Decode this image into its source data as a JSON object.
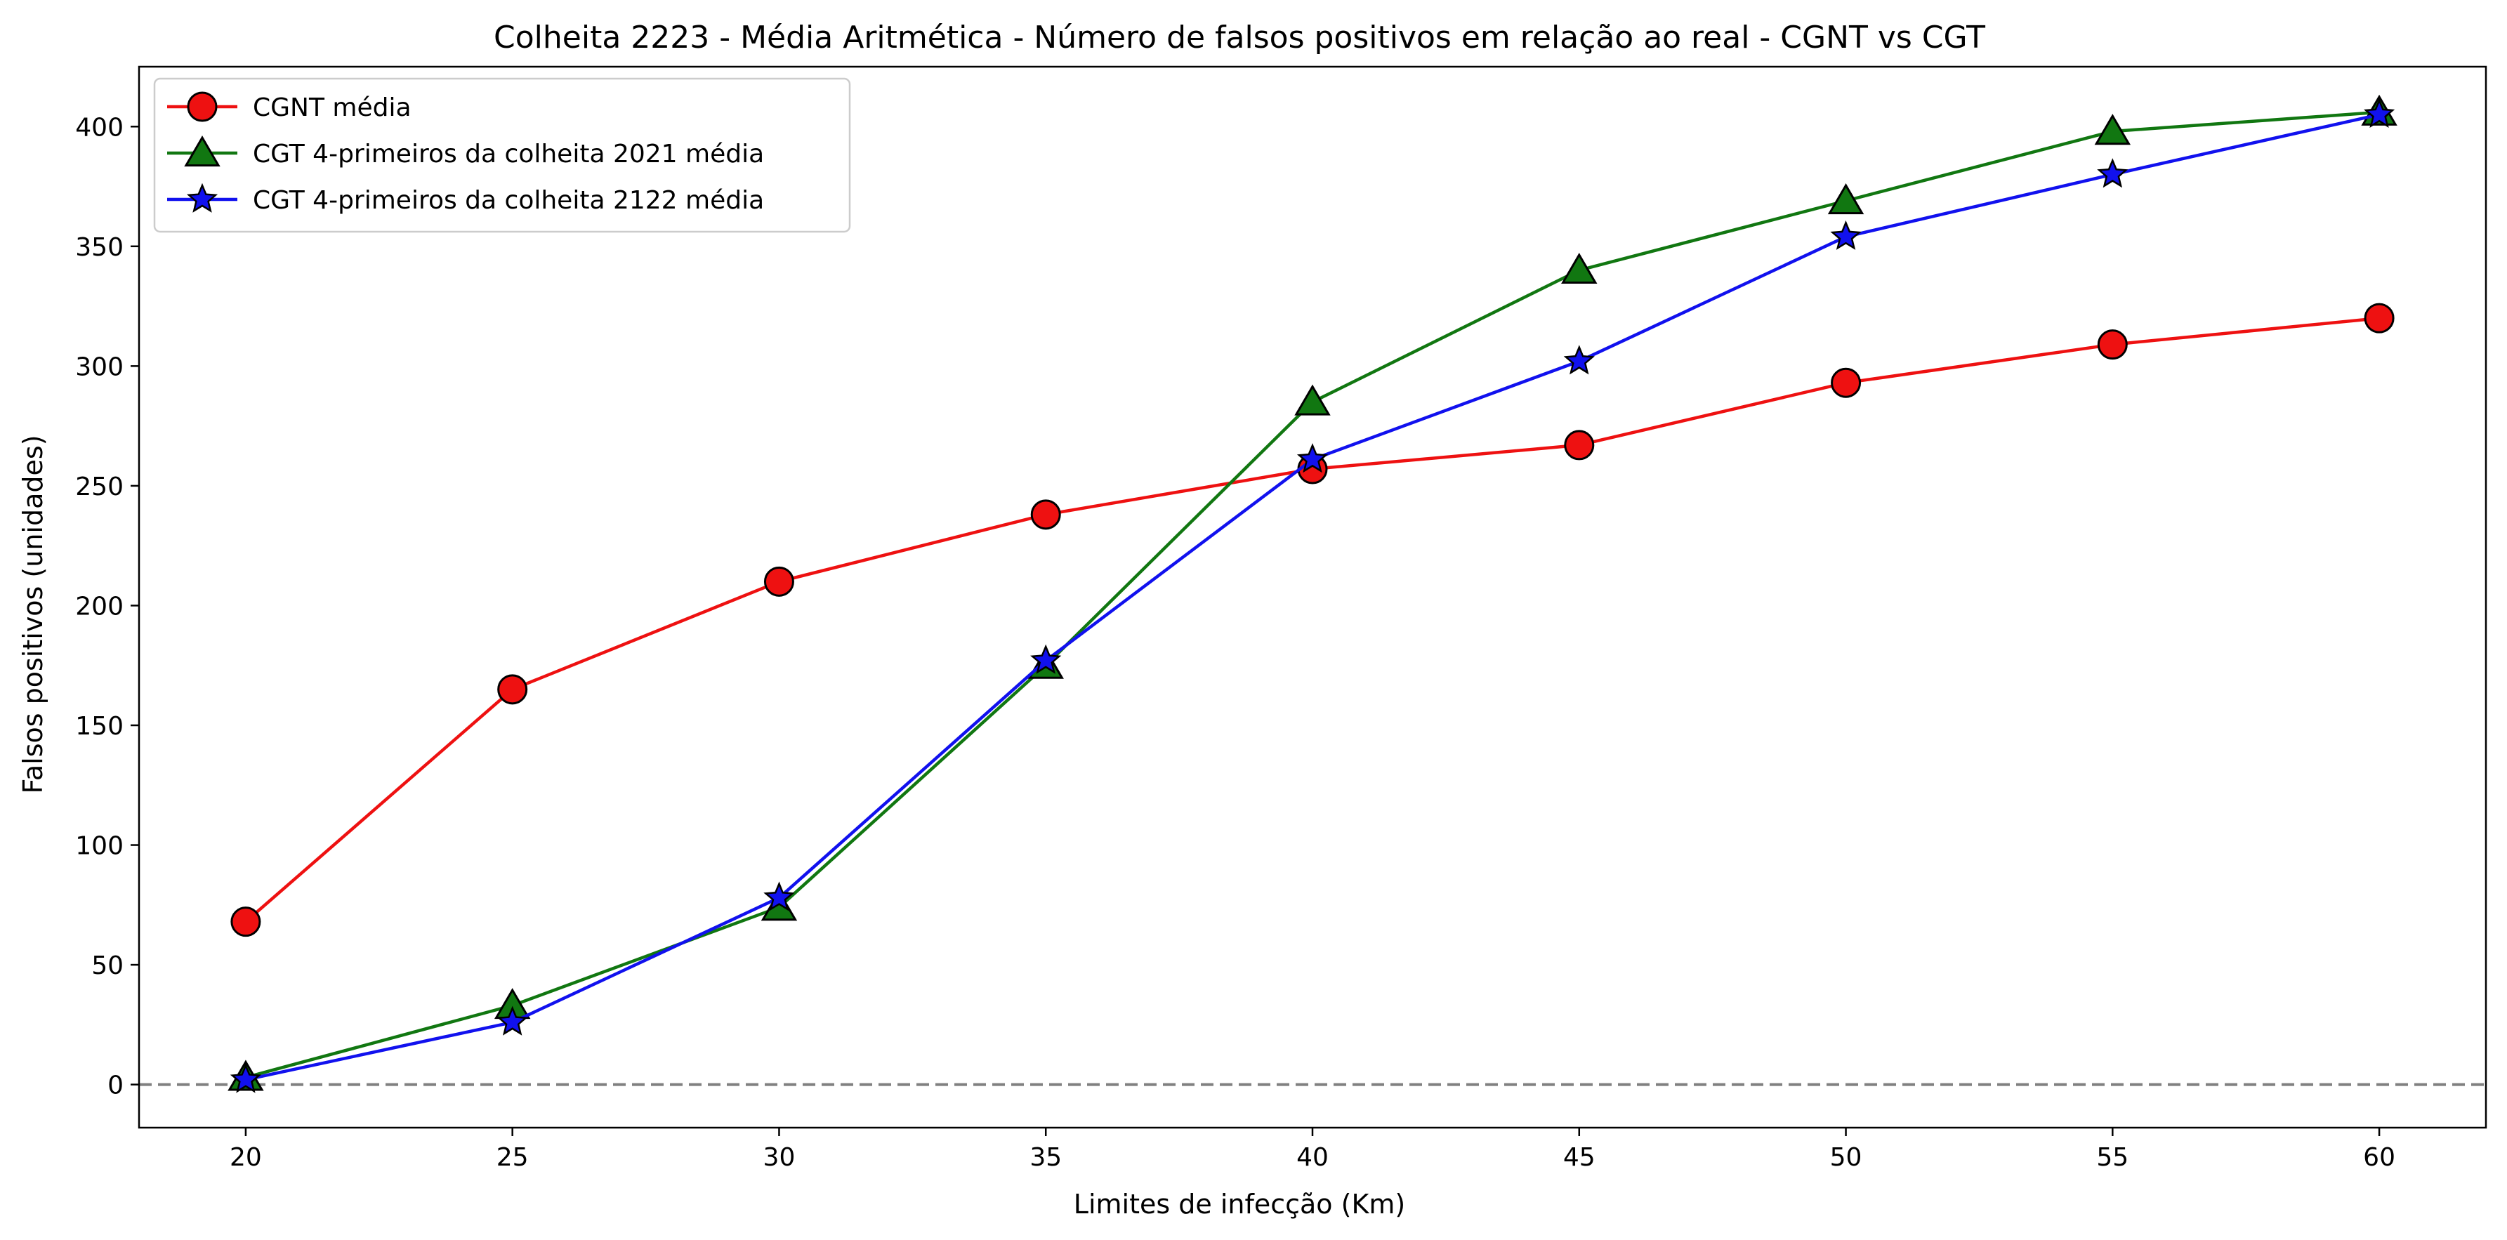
{
  "chart_data": {
    "type": "line",
    "title": "Colheita 2223 - Média Aritmética - Número de falsos positivos em relação ao real - CGNT vs CGT",
    "xlabel": "Limites de infecção (Km)",
    "ylabel": "Falsos positivos (unidades)",
    "x": [
      20,
      25,
      30,
      35,
      40,
      45,
      50,
      55,
      60
    ],
    "x_ticks": [
      "20",
      "25",
      "30",
      "35",
      "40",
      "45",
      "50",
      "55",
      "60"
    ],
    "y_ticks": [
      "0",
      "50",
      "100",
      "150",
      "200",
      "250",
      "300",
      "350",
      "400"
    ],
    "xlim": [
      18,
      62
    ],
    "ylim": [
      -18,
      425
    ],
    "grid": false,
    "legend_position": "upper-left",
    "reference_line": {
      "y": 0,
      "style": "dashed",
      "color": "#808080"
    },
    "series": [
      {
        "name": "CGNT média",
        "color": "#ee1111",
        "marker": "circle",
        "values": [
          68,
          165,
          210,
          238,
          257,
          267,
          293,
          309,
          320
        ]
      },
      {
        "name": "CGT 4-primeiros da colheita 2021 média",
        "color": "#117711",
        "marker": "triangle",
        "values": [
          3,
          33,
          74,
          175,
          285,
          340,
          369,
          398,
          406
        ]
      },
      {
        "name": "CGT 4-primeiros da colheita 2122 média",
        "color": "#1111ee",
        "marker": "star",
        "values": [
          2,
          26,
          78,
          177,
          261,
          302,
          354,
          380,
          405
        ]
      }
    ]
  }
}
